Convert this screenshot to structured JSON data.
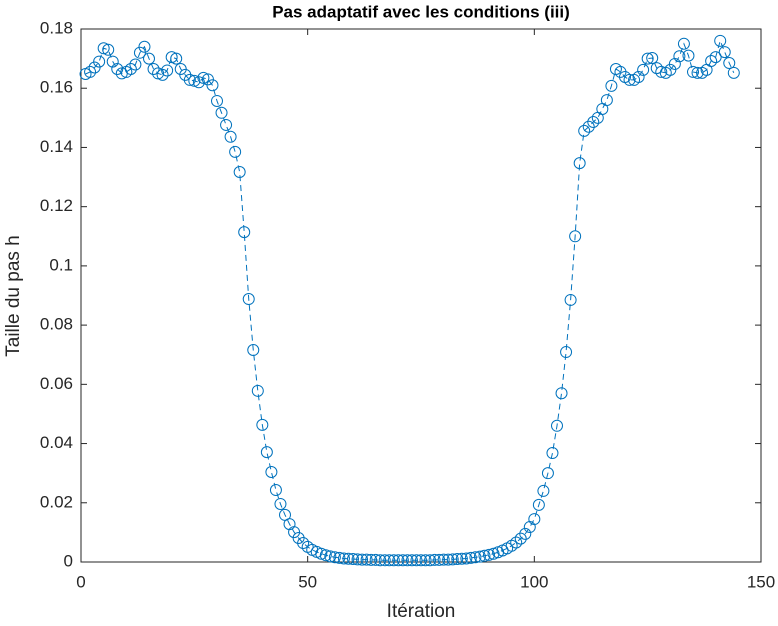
{
  "chart_data": {
    "type": "line",
    "title": "Pas adaptatif avec les conditions (iii)",
    "x_label": "Itération",
    "y_label": "Taille du pas h",
    "x": [
      1,
      2,
      3,
      4,
      5,
      6,
      7,
      8,
      9,
      10,
      11,
      12,
      13,
      14,
      15,
      16,
      17,
      18,
      19,
      20,
      21,
      22,
      23,
      24,
      25,
      26,
      27,
      28,
      29,
      30,
      31,
      32,
      33,
      34,
      35,
      36,
      37,
      38,
      39,
      40,
      41,
      42,
      43,
      44,
      45,
      46,
      47,
      48,
      49,
      50,
      51,
      52,
      53,
      54,
      55,
      56,
      57,
      58,
      59,
      60,
      61,
      62,
      63,
      64,
      65,
      66,
      67,
      68,
      69,
      70,
      71,
      72,
      73,
      74,
      75,
      76,
      77,
      78,
      79,
      80,
      81,
      82,
      83,
      84,
      85,
      86,
      87,
      88,
      89,
      90,
      91,
      92,
      93,
      94,
      95,
      96,
      97,
      98,
      99,
      100,
      101,
      102,
      103,
      104,
      105,
      106,
      107,
      108,
      109,
      110,
      111,
      112,
      113,
      114,
      115,
      116,
      117,
      118,
      119,
      120,
      121,
      122,
      123,
      124,
      125,
      126,
      127,
      128,
      129,
      130,
      131,
      132,
      133,
      134,
      135,
      136,
      137,
      138,
      139,
      140,
      141,
      142,
      143,
      144
    ],
    "series": [
      {
        "color": "#0072bd",
        "marker": "circle",
        "line_style": "dashed",
        "values": [
          0.1648,
          0.1655,
          0.167,
          0.169,
          0.1735,
          0.173,
          0.169,
          0.1665,
          0.165,
          0.1655,
          0.1665,
          0.168,
          0.172,
          0.174,
          0.17,
          0.1665,
          0.165,
          0.1645,
          0.166,
          0.1705,
          0.17,
          0.1665,
          0.1645,
          0.1628,
          0.1625,
          0.162,
          0.1635,
          0.163,
          0.161,
          0.1557,
          0.1517,
          0.1476,
          0.1436,
          0.1385,
          0.1317,
          0.1114,
          0.0888,
          0.0716,
          0.0578,
          0.0463,
          0.0371,
          0.0304,
          0.0243,
          0.0196,
          0.0159,
          0.0128,
          0.0101,
          0.0081,
          0.0064,
          0.0051,
          0.0041,
          0.0034,
          0.0028,
          0.0023,
          0.0019,
          0.0016,
          0.0014,
          0.0012,
          0.0011,
          0.001,
          0.0009,
          0.0008,
          0.0008,
          0.0007,
          0.0007,
          0.0006,
          0.0006,
          0.0006,
          0.0006,
          0.0006,
          0.0006,
          0.0006,
          0.0006,
          0.0006,
          0.0006,
          0.0006,
          0.0006,
          0.0007,
          0.0007,
          0.0008,
          0.0008,
          0.0009,
          0.001,
          0.0011,
          0.0012,
          0.0014,
          0.0016,
          0.0018,
          0.0021,
          0.0024,
          0.0028,
          0.0033,
          0.0039,
          0.0046,
          0.0055,
          0.0066,
          0.0079,
          0.0095,
          0.0118,
          0.0145,
          0.0193,
          0.024,
          0.03,
          0.0368,
          0.046,
          0.057,
          0.0709,
          0.0885,
          0.11,
          0.1347,
          0.1456,
          0.147,
          0.1486,
          0.15,
          0.153,
          0.156,
          0.1608,
          0.1665,
          0.1655,
          0.1638,
          0.1628,
          0.1628,
          0.1638,
          0.1662,
          0.17,
          0.1702,
          0.1668,
          0.1655,
          0.1652,
          0.1662,
          0.1682,
          0.1708,
          0.175,
          0.171,
          0.1655,
          0.1652,
          0.1652,
          0.1662,
          0.1692,
          0.1705,
          0.176,
          0.1722,
          0.1685,
          0.1652
        ]
      }
    ],
    "xlim": [
      0,
      150
    ],
    "xticks": [
      0,
      50,
      100,
      150
    ],
    "ylim": [
      0,
      0.18
    ],
    "yticks": [
      0,
      0.02,
      0.04,
      0.06,
      0.08,
      0.1,
      0.12,
      0.14,
      0.16,
      0.18
    ]
  }
}
